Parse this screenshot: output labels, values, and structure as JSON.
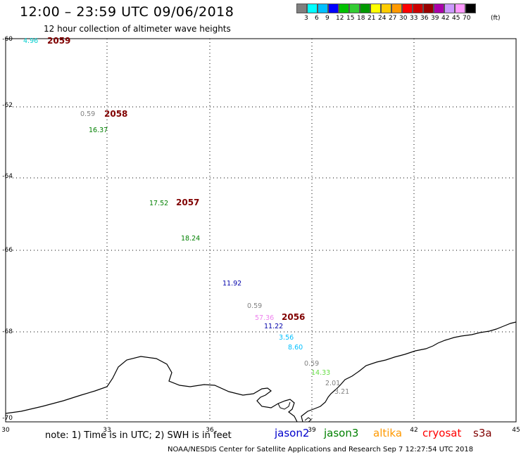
{
  "header": {
    "title": "12:00 – 23:59 UTC 09/06/2018",
    "subtitle": "12 hour collection of altimeter wave heights"
  },
  "colorbar": {
    "colors": [
      "#7f7f7f",
      "#00ffff",
      "#00bfff",
      "#0000ff",
      "#00c000",
      "#33cc33",
      "#009900",
      "#ffff00",
      "#ffcc00",
      "#ff9900",
      "#ff0000",
      "#cc0000",
      "#990000",
      "#aa00aa",
      "#cc99ff",
      "#ff99ff",
      "#000000"
    ],
    "labels": [
      "3",
      "6",
      "9",
      "12",
      "15",
      "18",
      "21",
      "24",
      "27",
      "30",
      "33",
      "36",
      "39",
      "42",
      "45",
      "70",
      "(ft)"
    ]
  },
  "map": {
    "x_ticks": [
      "30",
      "33",
      "36",
      "39",
      "42",
      "45"
    ],
    "y_ticks": [
      "-60",
      "-62",
      "-64",
      "-66",
      "-68",
      "-70"
    ]
  },
  "observations": [
    {
      "text": "4.96",
      "color": "#00cccc"
    },
    {
      "text": "2059",
      "color": "#800000"
    },
    {
      "text": "0.59",
      "color": "#808080"
    },
    {
      "text": "2058",
      "color": "#800000"
    },
    {
      "text": "16.37",
      "color": "#008000"
    },
    {
      "text": "17.52",
      "color": "#008000"
    },
    {
      "text": "2057",
      "color": "#800000"
    },
    {
      "text": "18.24",
      "color": "#008000"
    },
    {
      "text": "11.92",
      "color": "#0000aa"
    },
    {
      "text": "0.59",
      "color": "#808080"
    },
    {
      "text": "57.36",
      "color": "#ee82ee"
    },
    {
      "text": "2056",
      "color": "#800000"
    },
    {
      "text": "11.22",
      "color": "#0000aa"
    },
    {
      "text": "3.56",
      "color": "#00bfff"
    },
    {
      "text": "8.60",
      "color": "#00bfff"
    },
    {
      "text": "0.59",
      "color": "#808080"
    },
    {
      "text": "14.33",
      "color": "#66dd44"
    },
    {
      "text": "2.01",
      "color": "#808080"
    },
    {
      "text": "3.21",
      "color": "#808080"
    }
  ],
  "note": "note: 1) Time is in UTC; 2) SWH is in feet",
  "satellites": [
    {
      "name": "jason2",
      "color": "#0000cc"
    },
    {
      "name": "jason3",
      "color": "#008000"
    },
    {
      "name": "altika",
      "color": "#ff9900"
    },
    {
      "name": "cryosat",
      "color": "#ff0000"
    },
    {
      "name": "s3a",
      "color": "#800000"
    }
  ],
  "footer": "NOAA/NESDIS Center for Satellite Applications and Research    Sep  7 12:27:54 UTC 2018"
}
